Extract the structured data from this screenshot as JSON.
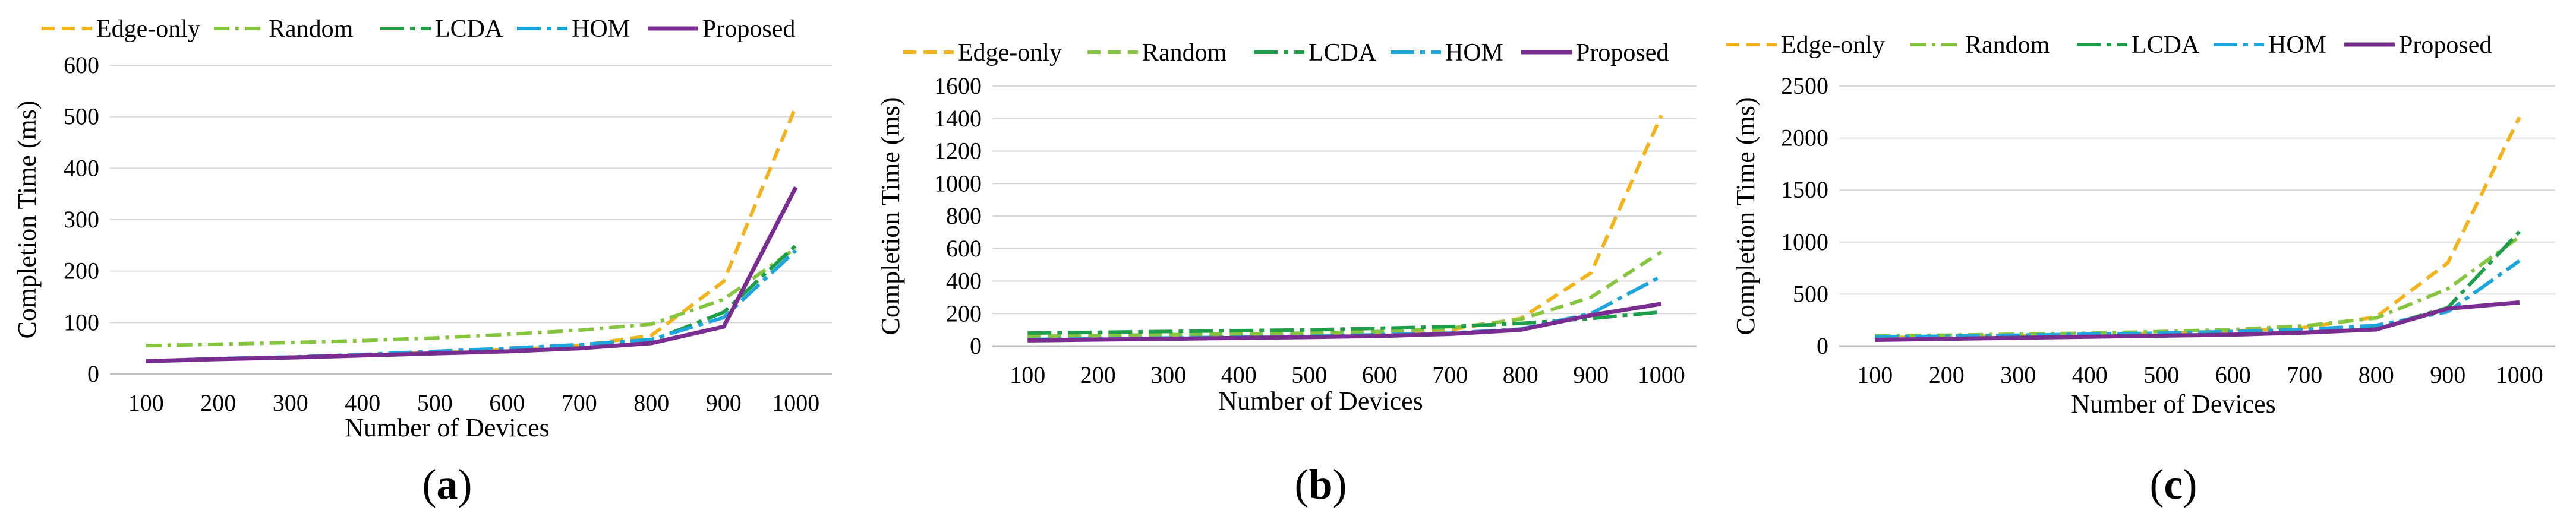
{
  "chart_data": [
    {
      "type": "line",
      "panel_label": "a",
      "xlabel": "Number of Devices",
      "ylabel": "Completion Time (ms)",
      "categories": [
        "100",
        "200",
        "300",
        "400",
        "500",
        "600",
        "700",
        "800",
        "900",
        "1000"
      ],
      "ylim": [
        0,
        600
      ],
      "yticks": [
        "0",
        "100",
        "200",
        "300",
        "400",
        "500",
        "600"
      ],
      "grid": true,
      "legend_position": "top",
      "series": [
        {
          "name": "Edge-only",
          "color": "#f5b31b",
          "dash": "dash",
          "values": [
            25,
            30,
            33,
            37,
            42,
            47,
            55,
            75,
            180,
            520
          ]
        },
        {
          "name": "Random",
          "color": "#86c540",
          "dash": "dashdot",
          "values": [
            55,
            58,
            61,
            65,
            70,
            77,
            85,
            97,
            145,
            245
          ]
        },
        {
          "name": "LCDA",
          "color": "#1f9e4a",
          "dash": "longdashdot",
          "values": [
            25,
            30,
            33,
            37,
            42,
            47,
            55,
            65,
            120,
            250
          ]
        },
        {
          "name": "HOM",
          "color": "#1ea5dc",
          "dash": "longdashdot",
          "values": [
            25,
            30,
            33,
            38,
            44,
            50,
            57,
            67,
            110,
            240
          ]
        },
        {
          "name": "Proposed",
          "color": "#7a2d91",
          "dash": "solid",
          "values": [
            25,
            29,
            32,
            36,
            40,
            44,
            50,
            60,
            92,
            363
          ]
        }
      ]
    },
    {
      "type": "line",
      "panel_label": "b",
      "xlabel": "Number of Devices",
      "ylabel": "Completion Time (ms)",
      "categories": [
        "100",
        "200",
        "300",
        "400",
        "500",
        "600",
        "700",
        "800",
        "900",
        "1000"
      ],
      "ylim": [
        0,
        1600
      ],
      "yticks": [
        "0",
        "200",
        "400",
        "600",
        "800",
        "1000",
        "1200",
        "1400",
        "1600"
      ],
      "grid": true,
      "legend_position": "top",
      "series": [
        {
          "name": "Edge-only",
          "color": "#f5b31b",
          "dash": "dash",
          "values": [
            50,
            55,
            60,
            65,
            70,
            80,
            100,
            170,
            450,
            1420
          ]
        },
        {
          "name": "Random",
          "color": "#86c540",
          "dash": "dash",
          "values": [
            60,
            65,
            70,
            75,
            80,
            90,
            110,
            165,
            300,
            580
          ]
        },
        {
          "name": "LCDA",
          "color": "#1f9e4a",
          "dash": "longdashdot",
          "values": [
            80,
            85,
            90,
            95,
            100,
            110,
            120,
            140,
            170,
            210
          ]
        },
        {
          "name": "HOM",
          "color": "#1ea5dc",
          "dash": "longdashdot",
          "values": [
            40,
            45,
            50,
            55,
            60,
            70,
            80,
            105,
            200,
            430
          ]
        },
        {
          "name": "Proposed",
          "color": "#7a2d91",
          "dash": "solid",
          "values": [
            35,
            40,
            45,
            50,
            55,
            62,
            75,
            100,
            190,
            260
          ]
        }
      ]
    },
    {
      "type": "line",
      "panel_label": "c",
      "xlabel": "Number of Devices",
      "ylabel": "Completion Time (ms)",
      "categories": [
        "100",
        "200",
        "300",
        "400",
        "500",
        "600",
        "700",
        "800",
        "900",
        "1000"
      ],
      "ylim": [
        0,
        2500
      ],
      "yticks": [
        "0",
        "500",
        "1000",
        "1500",
        "2000",
        "2500"
      ],
      "grid": true,
      "legend_position": "top",
      "series": [
        {
          "name": "Edge-only",
          "color": "#f5b31b",
          "dash": "dash",
          "values": [
            80,
            90,
            100,
            110,
            125,
            145,
            180,
            280,
            800,
            2200
          ]
        },
        {
          "name": "Random",
          "color": "#86c540",
          "dash": "dashdot",
          "values": [
            100,
            105,
            115,
            125,
            140,
            160,
            195,
            270,
            550,
            1050
          ]
        },
        {
          "name": "LCDA",
          "color": "#1f9e4a",
          "dash": "longdashdot",
          "values": [
            70,
            80,
            90,
            100,
            110,
            125,
            145,
            170,
            370,
            1100
          ]
        },
        {
          "name": "HOM",
          "color": "#1ea5dc",
          "dash": "longdashdot",
          "values": [
            90,
            95,
            105,
            115,
            125,
            140,
            160,
            200,
            330,
            820
          ]
        },
        {
          "name": "Proposed",
          "color": "#7a2d91",
          "dash": "solid",
          "values": [
            60,
            70,
            80,
            90,
            100,
            110,
            130,
            160,
            360,
            420
          ]
        }
      ]
    }
  ]
}
